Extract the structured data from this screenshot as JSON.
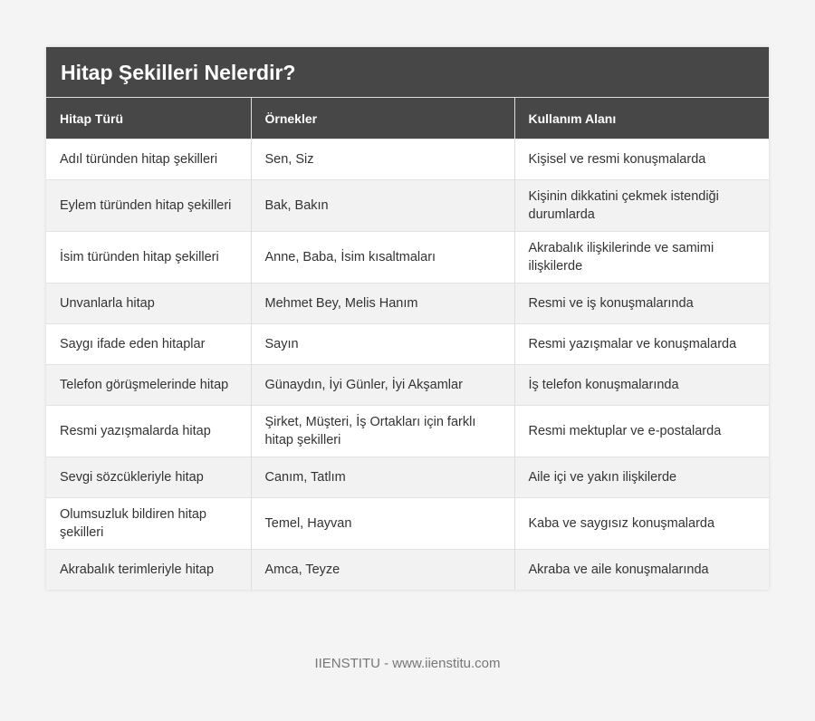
{
  "title": "Hitap Şekilleri Nelerdir?",
  "headers": [
    "Hitap Türü",
    "Örnekler",
    "Kullanım Alanı"
  ],
  "rows": [
    [
      "Adıl türünden hitap şekilleri",
      "Sen, Siz",
      "Kişisel ve resmi konuşmalarda"
    ],
    [
      "Eylem türünden hitap şekilleri",
      "Bak, Bakın",
      "Kişinin dikkatini çekmek istendiği durumlarda"
    ],
    [
      "İsim türünden hitap şekilleri",
      "Anne, Baba, İsim kısaltmaları",
      "Akrabalık ilişkilerinde ve samimi ilişkilerde"
    ],
    [
      "Unvanlarla hitap",
      "Mehmet Bey, Melis Hanım",
      "Resmi ve iş konuşmalarında"
    ],
    [
      "Saygı ifade eden hitaplar",
      "Sayın",
      "Resmi yazışmalar ve konuşmalarda"
    ],
    [
      "Telefon görüşmelerinde hitap",
      "Günaydın, İyi Günler, İyi Akşamlar",
      "İş telefon konuşmalarında"
    ],
    [
      "Resmi yazışmalarda hitap",
      "Şirket, Müşteri, İş Ortakları için farklı hitap şekilleri",
      "Resmi mektuplar ve e-postalarda"
    ],
    [
      "Sevgi sözcükleriyle hitap",
      "Canım, Tatlım",
      "Aile içi ve yakın ilişkilerde"
    ],
    [
      "Olumsuzluk bildiren hitap şekilleri",
      "Temel, Hayvan",
      "Kaba ve saygısız konuşmalarda"
    ],
    [
      "Akrabalık terimleriyle hitap",
      "Amca, Teyze",
      "Akraba ve aile konuşmalarında"
    ]
  ],
  "footer": "IIENSTITU - www.iienstitu.com"
}
